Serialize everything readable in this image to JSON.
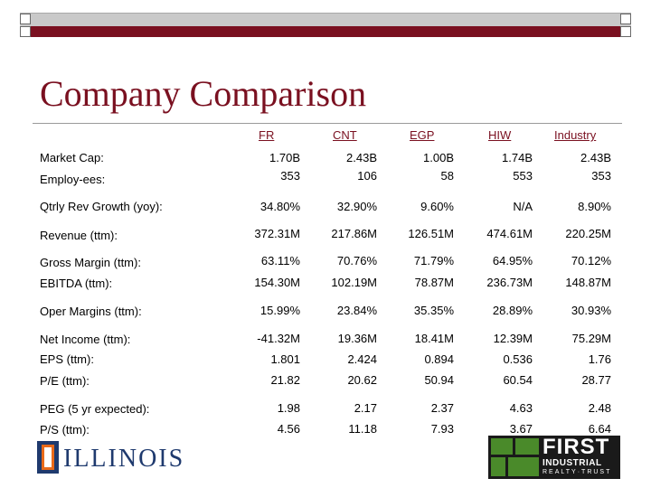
{
  "title": "Company Comparison",
  "columns": [
    "FR",
    "CNT",
    "EGP",
    "HIW",
    "Industry"
  ],
  "rows": [
    {
      "label": "Market Cap:",
      "values": [
        "1.70B",
        "2.43B",
        "1.00B",
        "1.74B",
        "2.43B"
      ]
    },
    {
      "label": "Employ-ees:",
      "values": [
        "353",
        "106",
        "58",
        "553",
        "353"
      ]
    },
    {
      "label": "Qtrly Rev Growth (yoy):",
      "values": [
        "34.80%",
        "32.90%",
        "9.60%",
        "N/A",
        "8.90%"
      ]
    },
    {
      "label": "Revenue (ttm):",
      "values": [
        "372.31M",
        "217.86M",
        "126.51M",
        "474.61M",
        "220.25M"
      ]
    },
    {
      "label": "Gross Margin (ttm):",
      "values": [
        "63.11%",
        "70.76%",
        "71.79%",
        "64.95%",
        "70.12%"
      ]
    },
    {
      "label": "EBITDA (ttm):",
      "values": [
        "154.30M",
        "102.19M",
        "78.87M",
        "236.73M",
        "148.87M"
      ]
    },
    {
      "label": "Oper Margins (ttm):",
      "values": [
        "15.99%",
        "23.84%",
        "35.35%",
        "28.89%",
        "30.93%"
      ]
    },
    {
      "label": "Net Income (ttm):",
      "values": [
        "-41.32M",
        "19.36M",
        "18.41M",
        "12.39M",
        "75.29M"
      ]
    },
    {
      "label": "EPS (ttm):",
      "values": [
        "1.801",
        "2.424",
        "0.894",
        "0.536",
        "1.76"
      ]
    },
    {
      "label": "P/E (ttm):",
      "values": [
        "21.82",
        "20.62",
        "50.94",
        "60.54",
        "28.77"
      ]
    },
    {
      "label": "PEG (5 yr expected):",
      "values": [
        "1.98",
        "2.17",
        "2.37",
        "4.63",
        "2.48"
      ]
    },
    {
      "label": "P/S (ttm):",
      "values": [
        "4.56",
        "11.18",
        "7.93",
        "3.67",
        "6.64"
      ]
    }
  ],
  "logos": {
    "left": "ILLINOIS",
    "right_main": "FIRST",
    "right_sub": "INDUSTRIAL",
    "right_tag": "REALTY·TRUST"
  },
  "colors": {
    "accent": "#7a1020",
    "illinois_blue": "#1f3a6e",
    "illinois_orange": "#e96a1a",
    "fi_green": "#4a8a2a"
  }
}
